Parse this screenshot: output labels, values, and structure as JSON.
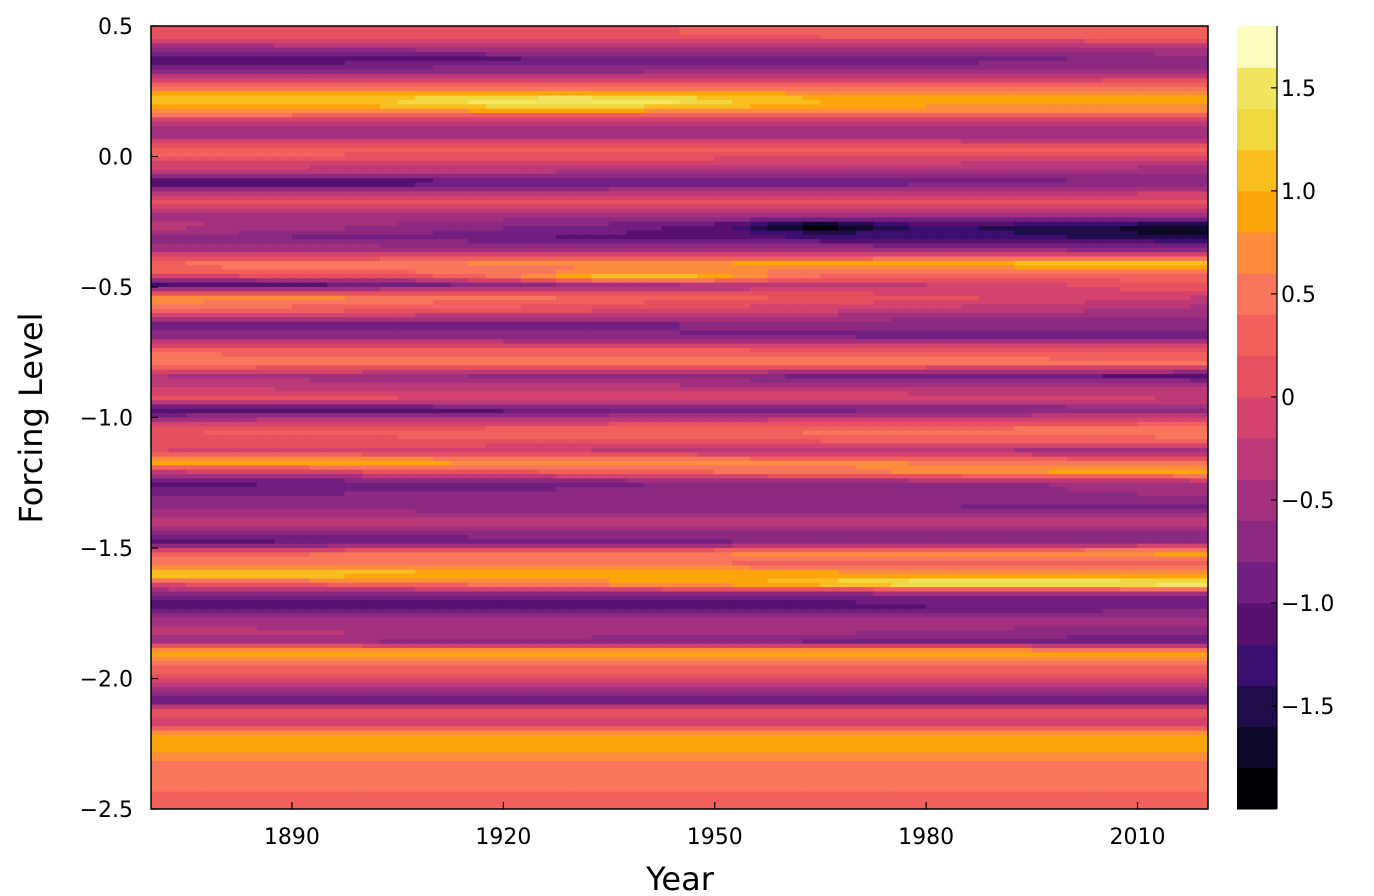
{
  "chart_data": {
    "type": "heatmap",
    "subtype": "filled-contour",
    "title": "",
    "xlabel": "Year",
    "ylabel": "Forcing Level",
    "xlim": [
      1870,
      2020
    ],
    "ylim": [
      -2.5,
      0.5
    ],
    "x_ticks": [
      1890,
      1920,
      1950,
      1980,
      2010
    ],
    "x_tick_labels": [
      "1890",
      "1920",
      "1950",
      "1980",
      "2010"
    ],
    "y_ticks": [
      0.5,
      0.0,
      -0.5,
      -1.0,
      -1.5,
      -2.0,
      -2.5
    ],
    "y_tick_labels": [
      "0.5",
      "0.0",
      "−0.5",
      "−1.0",
      "−1.5",
      "−2.0",
      "−2.5"
    ],
    "colorbar": {
      "range": [
        -2.0,
        1.8
      ],
      "ticks": [
        1.5,
        1.0,
        0.5,
        0,
        -0.5,
        -1.0,
        -1.5
      ],
      "tick_labels": [
        "1.5",
        "1.0",
        "0.5",
        "0",
        "−0.5",
        "−1.0",
        "−1.5"
      ],
      "levels": [
        -2.0,
        -1.8,
        -1.6,
        -1.4,
        -1.2,
        -1.0,
        -0.8,
        -0.6,
        -0.4,
        -0.2,
        0.0,
        0.2,
        0.4,
        0.6,
        0.8,
        1.0,
        1.2,
        1.4,
        1.6,
        1.8
      ],
      "colors": [
        "#000004",
        "#0d0829",
        "#200c4a",
        "#3b0f70",
        "#57106e",
        "#721f81",
        "#8c2981",
        "#a3307e",
        "#bc3978",
        "#d3436e",
        "#e6505f",
        "#f1605d",
        "#f8765c",
        "#fb8d3c",
        "#fca50a",
        "#f8be1f",
        "#f0d840",
        "#f2e661",
        "#fcfdbf"
      ],
      "colormap": "inferno"
    },
    "grid": false,
    "legend": "colorbar-right",
    "profile": [
      {
        "y": 0.5,
        "start": 0.2,
        "end": 0.2
      },
      {
        "y": 0.46,
        "start": 0.1,
        "end": 0.3
      },
      {
        "y": 0.42,
        "start": -0.5,
        "end": -0.3
      },
      {
        "y": 0.37,
        "start": -1.2,
        "end": -0.8
      },
      {
        "y": 0.32,
        "start": -0.6,
        "end": -0.5
      },
      {
        "y": 0.27,
        "start": 0.3,
        "end": 0.4
      },
      {
        "y": 0.23,
        "start": 1.1,
        "end": 0.8
      },
      {
        "y": 0.2,
        "start": 1.0,
        "end": 0.8
      },
      {
        "y": 0.17,
        "start": 0.7,
        "end": 0.6
      },
      {
        "y": 0.13,
        "start": -0.3,
        "end": -0.3
      },
      {
        "y": 0.08,
        "start": -0.6,
        "end": -0.6
      },
      {
        "y": 0.03,
        "start": 0.4,
        "end": 0.3
      },
      {
        "y": -0.02,
        "start": 0.0,
        "end": -0.2
      },
      {
        "y": -0.06,
        "start": -0.3,
        "end": -0.6
      },
      {
        "y": -0.1,
        "start": -1.3,
        "end": -0.8
      },
      {
        "y": -0.14,
        "start": -0.4,
        "end": -0.2
      },
      {
        "y": -0.18,
        "start": 0.2,
        "end": 0.1
      },
      {
        "y": -0.22,
        "start": -0.5,
        "end": -0.4
      },
      {
        "y": -0.27,
        "start": -0.3,
        "end": -1.7
      },
      {
        "y": -0.31,
        "start": -0.7,
        "end": -1.5
      },
      {
        "y": -0.36,
        "start": -0.4,
        "end": -0.6
      },
      {
        "y": -0.41,
        "start": 0.4,
        "end": 1.2
      },
      {
        "y": -0.45,
        "start": 0.3,
        "end": 0.4
      },
      {
        "y": -0.49,
        "start": -1.3,
        "end": 0.2
      },
      {
        "y": -0.54,
        "start": 0.8,
        "end": -0.2
      },
      {
        "y": -0.59,
        "start": 0.4,
        "end": -0.5
      },
      {
        "y": -0.64,
        "start": -0.9,
        "end": -0.7
      },
      {
        "y": -0.69,
        "start": -0.7,
        "end": -0.9
      },
      {
        "y": -0.74,
        "start": 0.3,
        "end": 0.1
      },
      {
        "y": -0.79,
        "start": 0.6,
        "end": 0.5
      },
      {
        "y": -0.84,
        "start": -0.4,
        "end": -1.1
      },
      {
        "y": -0.89,
        "start": -0.2,
        "end": -0.3
      },
      {
        "y": -0.93,
        "start": 0.1,
        "end": -0.2
      },
      {
        "y": -0.97,
        "start": -1.3,
        "end": -0.7
      },
      {
        "y": -1.01,
        "start": -0.4,
        "end": 0.0
      },
      {
        "y": -1.05,
        "start": 0.2,
        "end": 0.6
      },
      {
        "y": -1.09,
        "start": 0.1,
        "end": 0.3
      },
      {
        "y": -1.13,
        "start": 0.0,
        "end": -0.6
      },
      {
        "y": -1.17,
        "start": 1.1,
        "end": 0.4
      },
      {
        "y": -1.21,
        "start": -0.3,
        "end": 1.0
      },
      {
        "y": -1.25,
        "start": -1.1,
        "end": -0.5
      },
      {
        "y": -1.3,
        "start": -0.8,
        "end": -0.6
      },
      {
        "y": -1.35,
        "start": -0.6,
        "end": -0.9
      },
      {
        "y": -1.4,
        "start": -0.2,
        "end": -0.3
      },
      {
        "y": -1.44,
        "start": -0.7,
        "end": -0.6
      },
      {
        "y": -1.48,
        "start": -1.1,
        "end": -0.6
      },
      {
        "y": -1.52,
        "start": 0.3,
        "end": 0.9
      },
      {
        "y": -1.56,
        "start": 0.5,
        "end": 0.3
      },
      {
        "y": -1.6,
        "start": 1.3,
        "end": 0.7
      },
      {
        "y": -1.64,
        "start": 0.0,
        "end": 1.5
      },
      {
        "y": -1.68,
        "start": -0.9,
        "end": -0.8
      },
      {
        "y": -1.72,
        "start": -1.2,
        "end": -1.0
      },
      {
        "y": -1.77,
        "start": -0.6,
        "end": -0.5
      },
      {
        "y": -1.82,
        "start": -0.3,
        "end": -0.7
      },
      {
        "y": -1.86,
        "start": -0.5,
        "end": -1.0
      },
      {
        "y": -1.9,
        "start": 1.0,
        "end": 1.0
      },
      {
        "y": -1.95,
        "start": 0.4,
        "end": 0.4
      },
      {
        "y": -2.0,
        "start": 0.0,
        "end": 0.0
      },
      {
        "y": -2.05,
        "start": -0.7,
        "end": -0.7
      },
      {
        "y": -2.09,
        "start": -0.9,
        "end": -0.9
      },
      {
        "y": -2.13,
        "start": 0.2,
        "end": 0.2
      },
      {
        "y": -2.17,
        "start": -0.3,
        "end": -0.3
      },
      {
        "y": -2.21,
        "start": 0.8,
        "end": 0.8
      },
      {
        "y": -2.25,
        "start": 1.0,
        "end": 1.0
      },
      {
        "y": -2.3,
        "start": 0.7,
        "end": 0.7
      },
      {
        "y": -2.35,
        "start": 0.4,
        "end": 0.4
      },
      {
        "y": -2.4,
        "start": 0.5,
        "end": 0.5
      },
      {
        "y": -2.45,
        "start": 0.3,
        "end": 0.3
      },
      {
        "y": -2.5,
        "start": 0.2,
        "end": 0.2
      }
    ],
    "hotspots": [
      {
        "x": 1930,
        "y": 0.21,
        "value": 1.6,
        "sx": 25,
        "sy": 0.025
      },
      {
        "x": 1965,
        "y": -0.27,
        "value": -1.9,
        "sx": 10,
        "sy": 0.02
      },
      {
        "x": 2015,
        "y": -0.28,
        "value": -1.8,
        "sx": 6,
        "sy": 0.02
      },
      {
        "x": 1990,
        "y": -1.63,
        "value": 1.6,
        "sx": 25,
        "sy": 0.015
      },
      {
        "x": 1940,
        "y": -0.46,
        "value": 1.1,
        "sx": 20,
        "sy": 0.02
      }
    ]
  }
}
